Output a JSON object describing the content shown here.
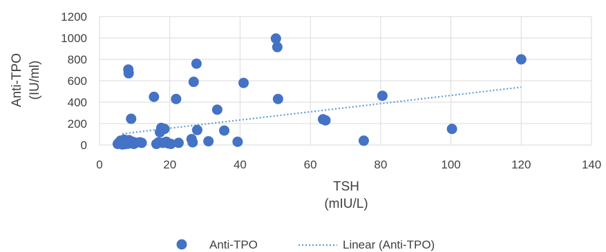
{
  "chart_data": {
    "type": "scatter",
    "xlabel": [
      "TSH",
      "(mIU/L)"
    ],
    "ylabel": [
      "Anti-TPO",
      "(IU/ml)"
    ],
    "xlim": [
      0,
      140
    ],
    "ylim": [
      0,
      1200
    ],
    "xticks": [
      0,
      20,
      40,
      60,
      80,
      100,
      120,
      140
    ],
    "yticks": [
      0,
      200,
      400,
      600,
      800,
      1000,
      1200
    ],
    "grid": true,
    "legend_position": "bottom",
    "colors": {
      "points": "#4472c4",
      "trendline": "#5b9bd5",
      "grid": "#d9d9d9",
      "text": "#404040"
    },
    "series": [
      {
        "name": "Anti-TPO",
        "kind": "scatter",
        "points": [
          [
            5.2,
            10
          ],
          [
            5.6,
            25
          ],
          [
            6.0,
            40
          ],
          [
            6.3,
            15
          ],
          [
            6.7,
            30
          ],
          [
            7.0,
            50
          ],
          [
            7.2,
            8
          ],
          [
            7.5,
            20
          ],
          [
            7.8,
            35
          ],
          [
            8.1,
            12
          ],
          [
            8.4,
            45
          ],
          [
            8.7,
            28
          ],
          [
            9.0,
            18
          ],
          [
            9.4,
            30
          ],
          [
            9.8,
            10
          ],
          [
            10.2,
            22
          ],
          [
            6.5,
            5
          ],
          [
            11.5,
            25
          ],
          [
            12.0,
            20
          ],
          [
            8.2,
            705
          ],
          [
            8.3,
            670
          ],
          [
            9.0,
            245
          ],
          [
            15.5,
            450
          ],
          [
            16.2,
            10
          ],
          [
            16.8,
            25
          ],
          [
            17.2,
            120
          ],
          [
            17.6,
            160
          ],
          [
            18.0,
            20
          ],
          [
            18.5,
            150
          ],
          [
            19.0,
            30
          ],
          [
            19.6,
            15
          ],
          [
            20.3,
            10
          ],
          [
            21.8,
            430
          ],
          [
            22.5,
            20
          ],
          [
            26.2,
            55
          ],
          [
            26.5,
            25
          ],
          [
            26.8,
            590
          ],
          [
            27.6,
            760
          ],
          [
            27.8,
            140
          ],
          [
            31.0,
            35
          ],
          [
            33.5,
            330
          ],
          [
            35.5,
            135
          ],
          [
            39.3,
            30
          ],
          [
            41.0,
            580
          ],
          [
            50.2,
            995
          ],
          [
            50.6,
            915
          ],
          [
            50.8,
            430
          ],
          [
            63.6,
            240
          ],
          [
            64.3,
            230
          ],
          [
            75.2,
            40
          ],
          [
            80.5,
            460
          ],
          [
            100.3,
            150
          ],
          [
            120.0,
            800
          ]
        ]
      },
      {
        "name": "Linear (Anti-TPO)",
        "kind": "trendline",
        "line": [
          [
            6.5,
            105
          ],
          [
            120.0,
            540
          ]
        ]
      }
    ]
  }
}
